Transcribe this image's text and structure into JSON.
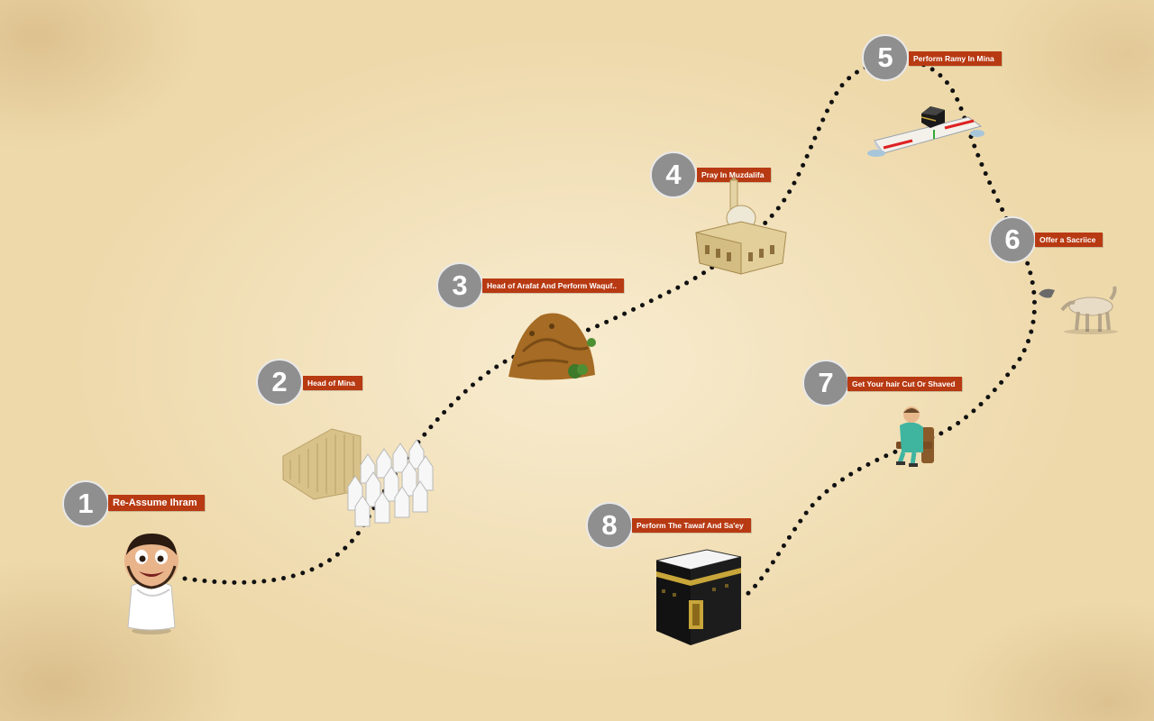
{
  "steps": [
    {
      "number": "1",
      "label": "Re-Assume Ihram"
    },
    {
      "number": "2",
      "label": "Head of  Mina"
    },
    {
      "number": "3",
      "label": "Head of Arafat And Perform Waquf.."
    },
    {
      "number": "4",
      "label": "Pray In Muzdalifa"
    },
    {
      "number": "5",
      "label": "Perform Ramy  In Mina"
    },
    {
      "number": "6",
      "label": "Offer a Sacriice"
    },
    {
      "number": "7",
      "label": "Get Your hair Cut Or  Shaved"
    },
    {
      "number": "8",
      "label": "Perform The Tawaf And Sa'ey"
    }
  ],
  "icons": {
    "step1": "pilgrim-in-ihram-icon",
    "step2": "mina-tents-icon",
    "step3": "mount-arafat-icon",
    "step4": "muzdalifa-mosque-icon",
    "step5": "jamarat-bridge-icon",
    "step6": "camel-sacrifice-icon",
    "step7": "barber-chair-icon",
    "step8": "kaaba-icon"
  },
  "colors": {
    "badge": "#8f8f8f",
    "label": "#b83a12",
    "path": "#111111"
  }
}
